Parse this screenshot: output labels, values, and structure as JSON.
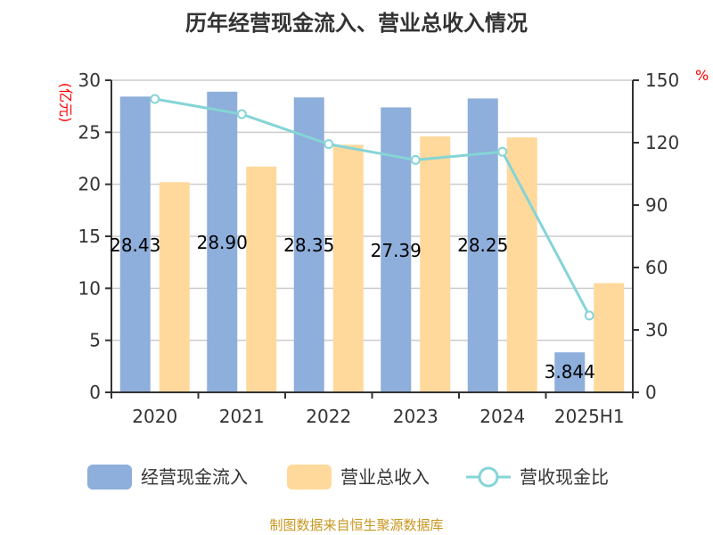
{
  "chart_data": {
    "type": "bar",
    "title": "历年经营现金流入、营业总收入情况",
    "categories": [
      "2020",
      "2021",
      "2022",
      "2023",
      "2024",
      "2025H1"
    ],
    "ylabel_left": "(亿元)",
    "ylabel_right": "%",
    "ylim_left": [
      0,
      30
    ],
    "yticks_left": [
      "0",
      "5",
      "10",
      "15",
      "20",
      "25",
      "30"
    ],
    "ylim_right": [
      0,
      150
    ],
    "yticks_right": [
      "0",
      "30",
      "60",
      "90",
      "120",
      "150"
    ],
    "grid": true,
    "legend_position": "bottom",
    "series": [
      {
        "name": "经营现金流入",
        "type": "bar",
        "axis": "left",
        "color": "#8eaedb",
        "values": [
          28.43,
          28.9,
          28.35,
          27.39,
          28.25,
          3.844
        ],
        "labels": [
          "28.43",
          "28.90",
          "28.35",
          "27.39",
          "28.25",
          "3.844"
        ]
      },
      {
        "name": "营业总收入",
        "type": "bar",
        "axis": "left",
        "color": "#ffd99b",
        "values": [
          20.2,
          21.7,
          23.8,
          24.6,
          24.5,
          10.5
        ]
      },
      {
        "name": "营收现金比",
        "type": "line",
        "axis": "right",
        "color": "#85d4d7",
        "values": [
          141,
          133.7,
          119.3,
          111.7,
          115.6,
          36.9
        ]
      }
    ]
  },
  "source": "制图数据来自恒生聚源数据库"
}
